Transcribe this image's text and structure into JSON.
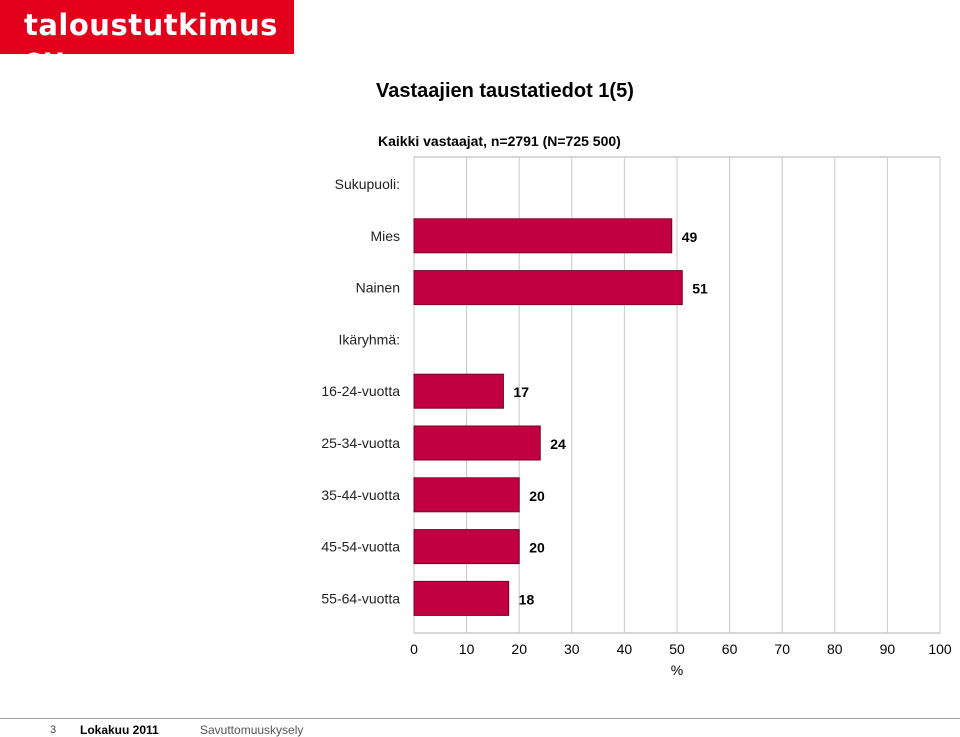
{
  "logo": {
    "text": "taloustutkimus oy",
    "color": "#e3001b"
  },
  "title": "Vastaajien taustatiedot 1(5)",
  "subtitle": "Kaikki vastaajat, n=2791  (N=725 500)",
  "footer": {
    "page": "3",
    "date": "Lokakuu 2011",
    "survey": "Savuttomuuskysely"
  },
  "chart_data": {
    "type": "bar",
    "orientation": "horizontal",
    "bar_color": "#c00040",
    "xlim": [
      0,
      100
    ],
    "xticks": [
      0,
      10,
      20,
      30,
      40,
      50,
      60,
      70,
      80,
      90,
      100
    ],
    "xlabel": "%",
    "grid": true,
    "groups": [
      {
        "label": "Sukupuoli:",
        "items": [
          {
            "label": "Mies",
            "value": 49
          },
          {
            "label": "Nainen",
            "value": 51
          }
        ]
      },
      {
        "label": "Ikäryhmä:",
        "items": [
          {
            "label": "16-24-vuotta",
            "value": 17
          },
          {
            "label": "25-34-vuotta",
            "value": 24
          },
          {
            "label": "35-44-vuotta",
            "value": 20
          },
          {
            "label": "45-54-vuotta",
            "value": 20
          },
          {
            "label": "55-64-vuotta",
            "value": 18
          }
        ]
      }
    ]
  }
}
